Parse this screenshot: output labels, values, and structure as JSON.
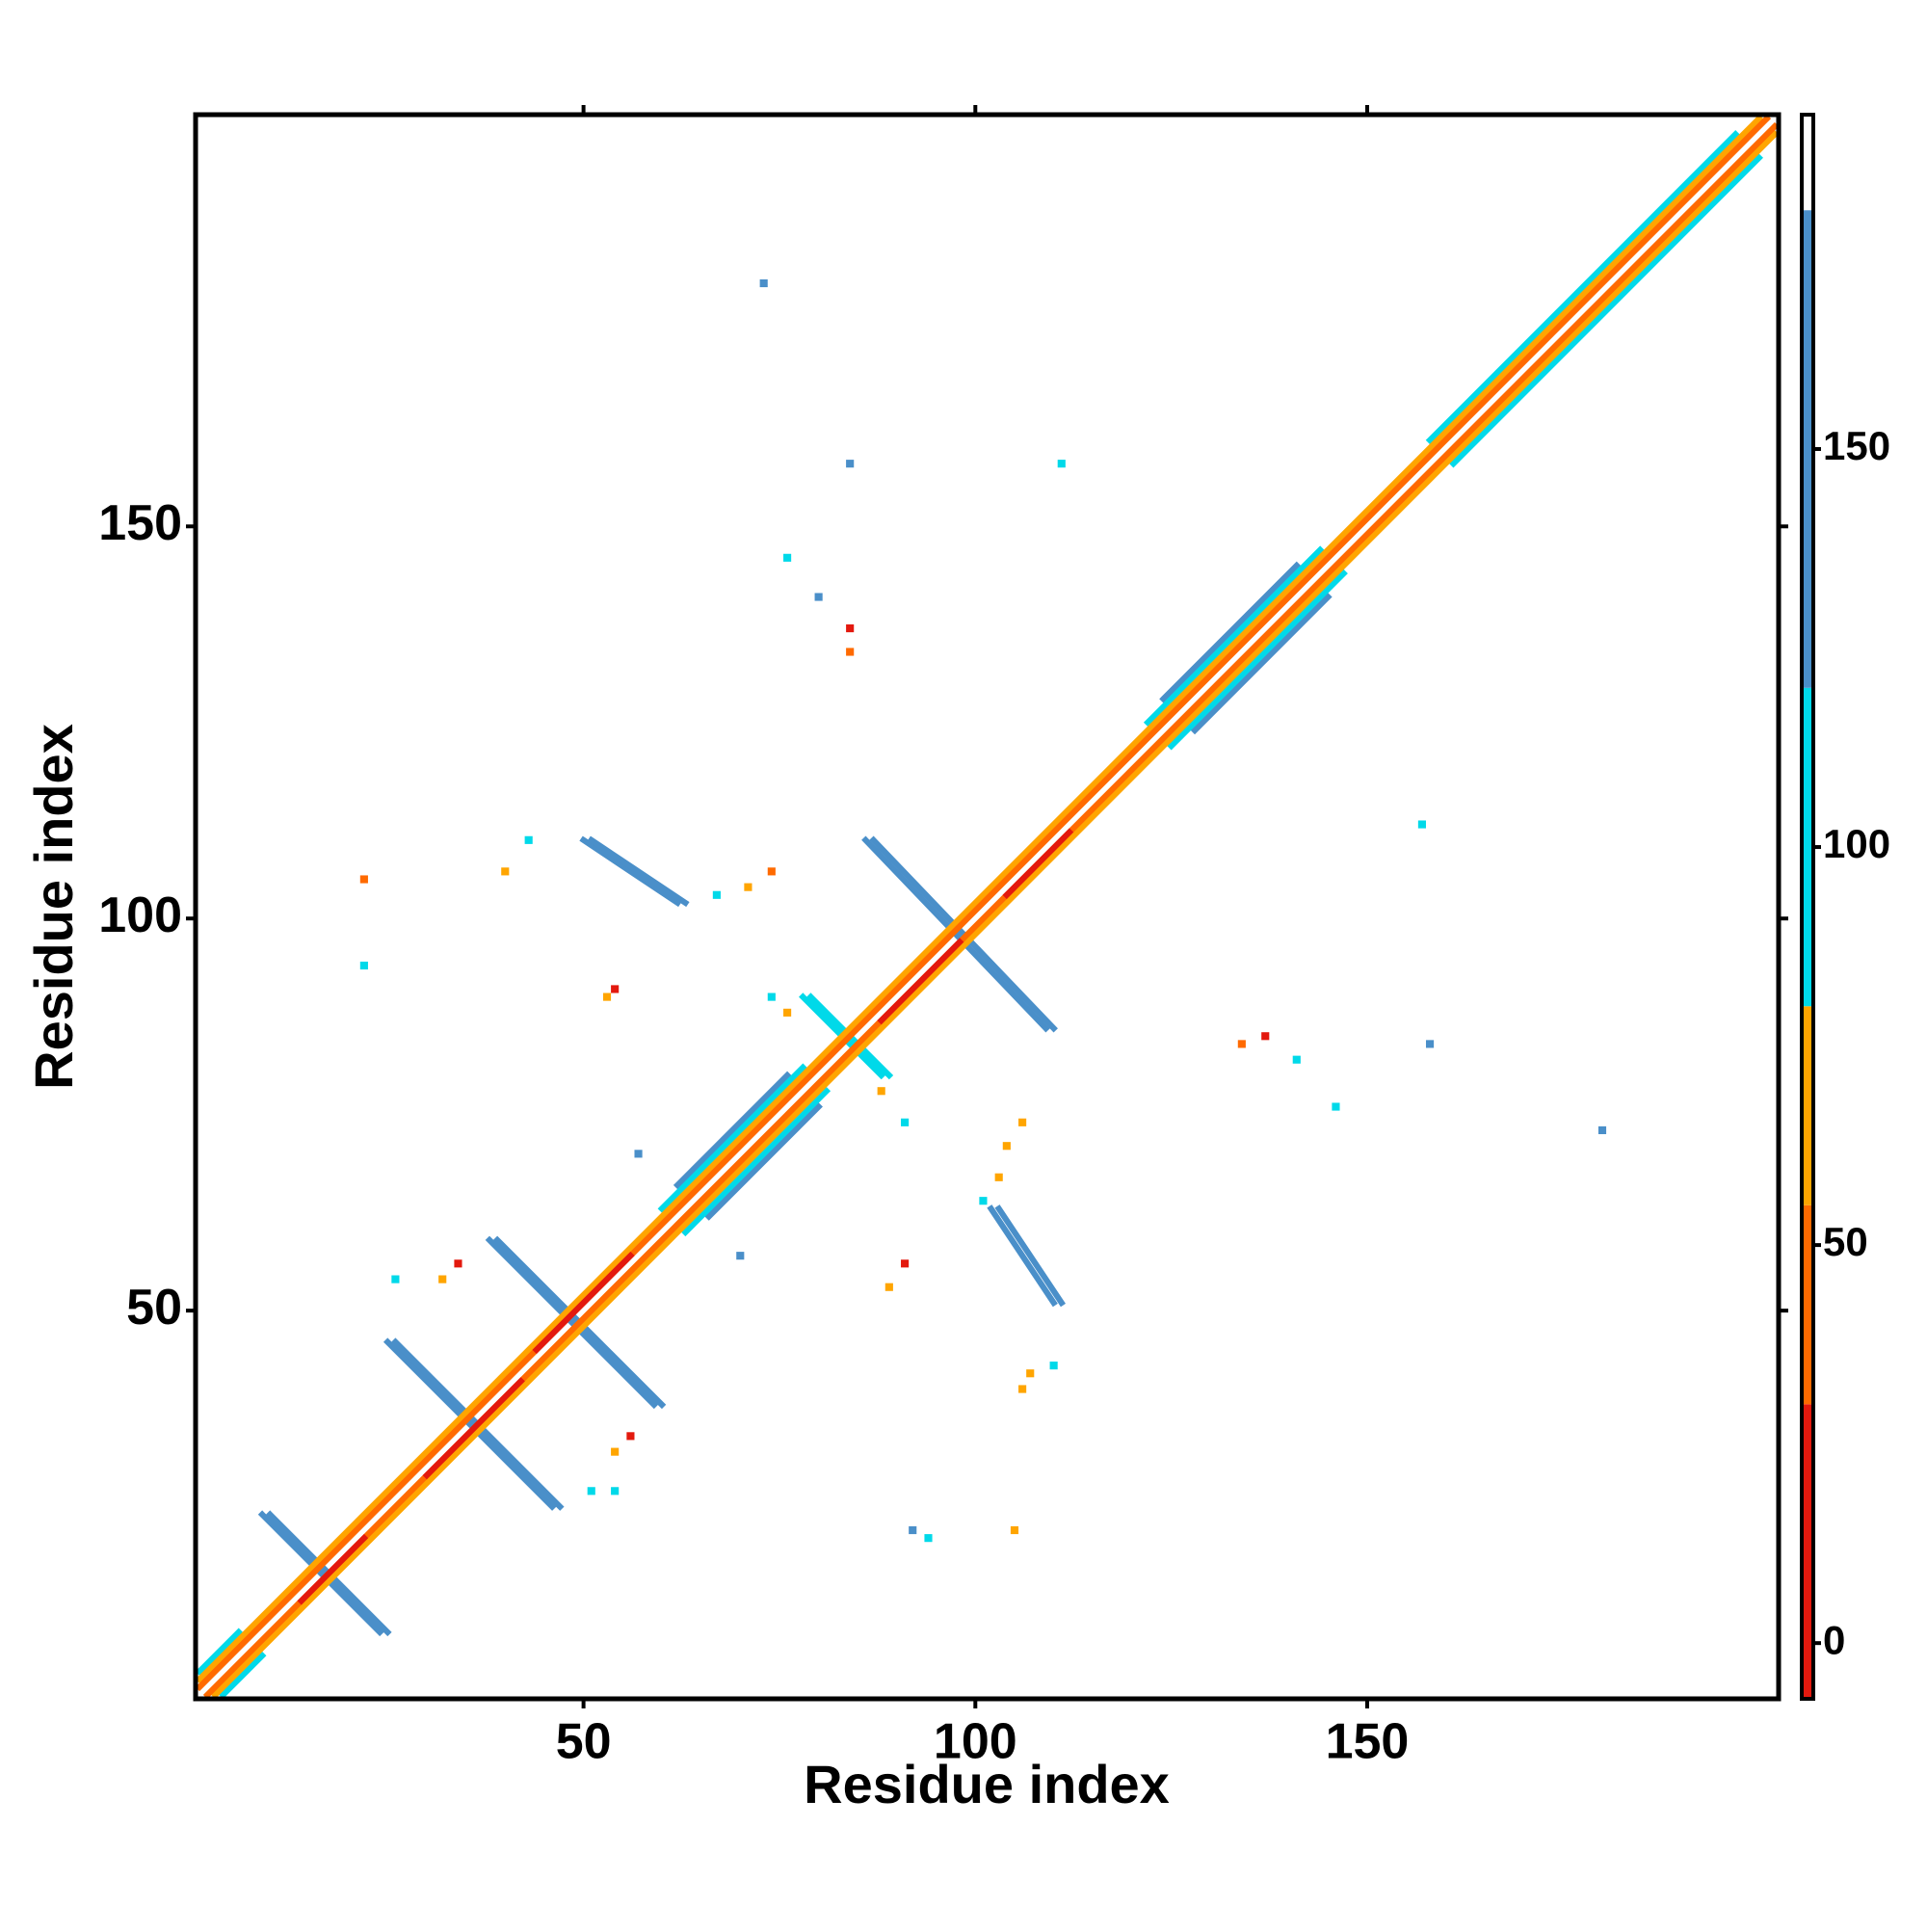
{
  "chart_data": {
    "type": "heatmap",
    "x_label": "Residue index",
    "y_label": "Residue index",
    "xlim": [
      0.5,
      202.5
    ],
    "ylim": [
      0.5,
      202.5
    ],
    "xticks": [
      50,
      100,
      150
    ],
    "yticks": [
      50,
      100,
      150
    ],
    "colorbar": {
      "lim": [
        -7,
        192
      ],
      "ticks": [
        0,
        50,
        100,
        150
      ],
      "breaks": [
        -7,
        30,
        55,
        80,
        120,
        180,
        192
      ],
      "colors": [
        "#e3190e",
        "#ff6a00",
        "#ffa500",
        "#00d9e9",
        "#4a8fc9",
        "#ffffff"
      ]
    },
    "bands": [
      {
        "x": [
          9,
          24
        ],
        "y": [
          24,
          9
        ],
        "value": 150
      },
      {
        "x": [
          10,
          25
        ],
        "y": [
          24,
          9
        ],
        "value": 150
      },
      {
        "x": [
          25,
          46
        ],
        "y": [
          46,
          25
        ],
        "value": 150
      },
      {
        "x": [
          26,
          47
        ],
        "y": [
          46,
          25
        ],
        "value": 150
      },
      {
        "x": [
          38,
          59
        ],
        "y": [
          59,
          38
        ],
        "value": 150
      },
      {
        "x": [
          39,
          60
        ],
        "y": [
          59,
          38
        ],
        "value": 150
      },
      {
        "x": [
          86,
          109
        ],
        "y": [
          110,
          86
        ],
        "value": 150
      },
      {
        "x": [
          87,
          110
        ],
        "y": [
          110,
          86
        ],
        "value": 150
      },
      {
        "x": [
          50,
          62
        ],
        "y": [
          110,
          102
        ],
        "value": 150
      },
      {
        "x": [
          51,
          63
        ],
        "y": [
          110,
          102
        ],
        "value": 150
      },
      {
        "x": [
          102,
          110
        ],
        "y": [
          63,
          51
        ],
        "value": 150
      },
      {
        "x": [
          103,
          111
        ],
        "y": [
          63,
          51
        ],
        "value": 150
      },
      {
        "x": [
          78,
          88
        ],
        "y": [
          90,
          80
        ],
        "value": 100
      },
      {
        "x": [
          79,
          89
        ],
        "y": [
          90,
          80
        ],
        "value": 100
      },
      {
        "x": [
          62,
          76
        ],
        "y": [
          66,
          80
        ],
        "value": 150
      },
      {
        "x": [
          66,
          80
        ],
        "y": [
          62,
          76
        ],
        "value": 150
      },
      {
        "x": [
          124,
          141
        ],
        "y": [
          128,
          145
        ],
        "value": 150
      },
      {
        "x": [
          128,
          145
        ],
        "y": [
          124,
          141
        ],
        "value": 150
      },
      {
        "x": [
          60,
          78
        ],
        "y": [
          63,
          81
        ],
        "value": 100
      },
      {
        "x": [
          63,
          81
        ],
        "y": [
          60,
          78
        ],
        "value": 100
      },
      {
        "x": [
          122,
          144
        ],
        "y": [
          125,
          147
        ],
        "value": 100
      },
      {
        "x": [
          125,
          147
        ],
        "y": [
          122,
          144
        ],
        "value": 100
      },
      {
        "x": [
          158,
          197
        ],
        "y": [
          161,
          200
        ],
        "value": 100
      },
      {
        "x": [
          161,
          200
        ],
        "y": [
          158,
          197
        ],
        "value": 100
      },
      {
        "x": [
          1,
          6
        ],
        "y": [
          4,
          9
        ],
        "value": 100
      },
      {
        "x": [
          4,
          9
        ],
        "y": [
          1,
          6
        ],
        "value": 100
      },
      {
        "x": [
          1,
          200
        ],
        "y": [
          3,
          202
        ],
        "value": 65
      },
      {
        "x": [
          3,
          202
        ],
        "y": [
          1,
          200
        ],
        "value": 65
      },
      {
        "x": [
          1,
          201
        ],
        "y": [
          2,
          202
        ],
        "value": 40
      },
      {
        "x": [
          2,
          202
        ],
        "y": [
          1,
          201
        ],
        "value": 40
      },
      {
        "x": [
          14,
          22
        ],
        "y": [
          13,
          21
        ],
        "value": 10
      },
      {
        "x": [
          30,
          42
        ],
        "y": [
          29,
          41
        ],
        "value": 10
      },
      {
        "x": [
          88,
          98
        ],
        "y": [
          87,
          97
        ],
        "value": 10
      },
      {
        "x": [
          104,
          112
        ],
        "y": [
          103,
          111
        ],
        "value": 10
      },
      {
        "x": [
          44,
          56
        ],
        "y": [
          45,
          57
        ],
        "value": 10
      }
    ],
    "cells": [
      [
        73,
        181,
        150
      ],
      [
        84,
        158,
        150
      ],
      [
        111,
        158,
        100
      ],
      [
        76,
        146,
        100
      ],
      [
        80,
        141,
        150
      ],
      [
        84,
        137,
        10
      ],
      [
        84,
        134,
        40
      ],
      [
        157,
        112,
        100
      ],
      [
        158,
        84,
        150
      ],
      [
        180,
        73,
        150
      ],
      [
        137,
        85,
        10
      ],
      [
        134,
        84,
        40
      ],
      [
        141,
        82,
        100
      ],
      [
        146,
        76,
        100
      ],
      [
        22,
        105,
        40
      ],
      [
        22,
        94,
        100
      ],
      [
        43,
        110,
        100
      ],
      [
        40,
        106,
        65
      ],
      [
        71,
        104,
        65
      ],
      [
        74,
        106,
        40
      ],
      [
        67,
        103,
        100
      ],
      [
        54,
        91,
        10
      ],
      [
        53,
        90,
        65
      ],
      [
        74,
        90,
        100
      ],
      [
        76,
        88,
        65
      ],
      [
        88,
        78,
        65
      ],
      [
        91,
        74,
        100
      ],
      [
        57,
        70,
        150
      ],
      [
        70,
        57,
        150
      ],
      [
        106,
        74,
        65
      ],
      [
        104,
        71,
        65
      ],
      [
        103,
        67,
        65
      ],
      [
        101,
        64,
        100
      ],
      [
        91,
        56,
        10
      ],
      [
        89,
        53,
        65
      ],
      [
        110,
        43,
        100
      ],
      [
        106,
        40,
        65
      ],
      [
        107,
        42,
        65
      ],
      [
        92,
        22,
        150
      ],
      [
        94,
        21,
        100
      ],
      [
        105,
        22,
        65
      ],
      [
        32,
        54,
        65
      ],
      [
        34,
        56,
        10
      ],
      [
        26,
        54,
        100
      ],
      [
        54,
        32,
        65
      ],
      [
        56,
        34,
        10
      ],
      [
        51,
        27,
        100
      ],
      [
        54,
        27,
        100
      ]
    ]
  }
}
